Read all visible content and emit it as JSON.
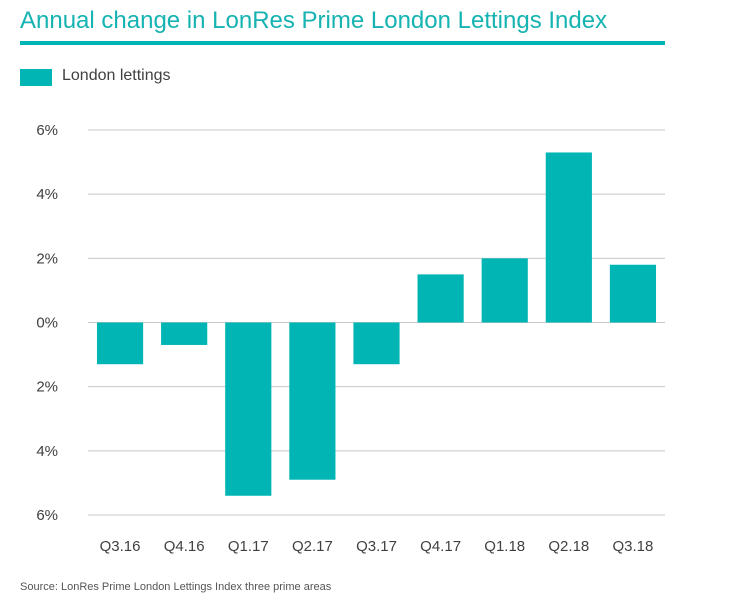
{
  "colors": {
    "accent": "#00b5b3",
    "title": "#15b3b1",
    "grid": "#c8c8c8",
    "text": "#404040"
  },
  "chart_data": {
    "type": "bar",
    "title": "Annual change in LonRes Prime London Lettings Index",
    "xlabel": "",
    "ylabel": "",
    "categories": [
      "Q3.16",
      "Q4.16",
      "Q1.17",
      "Q2.17",
      "Q3.17",
      "Q4.17",
      "Q1.18",
      "Q2.18",
      "Q3.18"
    ],
    "series": [
      {
        "name": "London lettings",
        "values": [
          -1.3,
          -0.7,
          -5.4,
          -4.9,
          -1.3,
          1.5,
          2.0,
          5.3,
          1.8
        ]
      }
    ],
    "ylim": [
      -6,
      6
    ],
    "yticks": [
      6,
      4,
      2,
      0,
      -2,
      -4,
      -6
    ],
    "ytick_labels": [
      "6%",
      "4%",
      "2%",
      "0%",
      "2%",
      "4%",
      "6%"
    ],
    "grid": true,
    "legend_position": "top-left",
    "source": "Source: LonRes Prime London Lettings Index three prime areas"
  }
}
